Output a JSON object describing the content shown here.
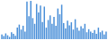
{
  "chart_data": {
    "type": "bar",
    "categories": [
      null,
      null,
      null,
      null,
      null,
      null,
      null,
      null,
      null,
      null,
      null,
      null,
      null,
      null,
      null,
      null,
      null,
      null,
      null,
      null,
      null,
      null,
      null,
      null,
      null,
      null,
      null,
      null,
      null,
      null,
      null,
      null,
      null,
      null,
      null,
      null,
      null,
      null,
      null,
      null,
      null,
      null,
      null,
      null,
      null,
      null,
      null,
      null,
      null,
      null,
      null,
      null,
      null,
      null,
      null
    ],
    "values": [
      12,
      8,
      15,
      10,
      6,
      18,
      14,
      9,
      30,
      38,
      25,
      35,
      20,
      98,
      60,
      100,
      55,
      40,
      92,
      70,
      88,
      45,
      85,
      30,
      50,
      62,
      40,
      58,
      35,
      80,
      65,
      90,
      42,
      28,
      48,
      36,
      44,
      25,
      52,
      30,
      22,
      34,
      28,
      40,
      18,
      26,
      20,
      16,
      24,
      14,
      30,
      18,
      22,
      12,
      20
    ],
    "color": "#4a8fd8",
    "ylim": [
      0,
      100
    ],
    "grid": false,
    "tick_labels": false
  }
}
